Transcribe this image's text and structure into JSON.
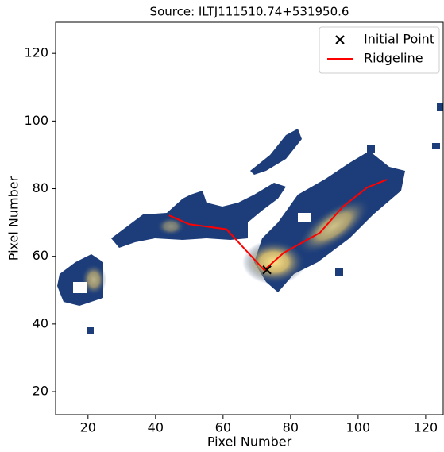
{
  "chart_data": {
    "type": "line",
    "title": "Source: ILTJ111510.74+531950.6",
    "x_label": "Pixel Number",
    "y_label": "Pixel Number",
    "xlim": [
      10.4,
      125.2
    ],
    "ylim": [
      13.2,
      129.2
    ],
    "xticks": [
      20,
      40,
      60,
      80,
      100,
      120
    ],
    "yticks": [
      20,
      40,
      60,
      80,
      100,
      120
    ],
    "grid": false,
    "legend_loc": "upper right",
    "series": [
      {
        "name": "Initial Point",
        "marker": "x",
        "color": "#000000",
        "x": [
          73
        ],
        "values": [
          56
        ]
      },
      {
        "name": "Ridgeline",
        "color": "#ff0000",
        "x": [
          44,
          50,
          61,
          72.2,
          77.9,
          88.7,
          95.5,
          102.6,
          108.5
        ],
        "values": [
          72.1,
          69.5,
          68,
          55.9,
          61,
          67,
          74.7,
          80.3,
          82.7
        ]
      }
    ]
  }
}
